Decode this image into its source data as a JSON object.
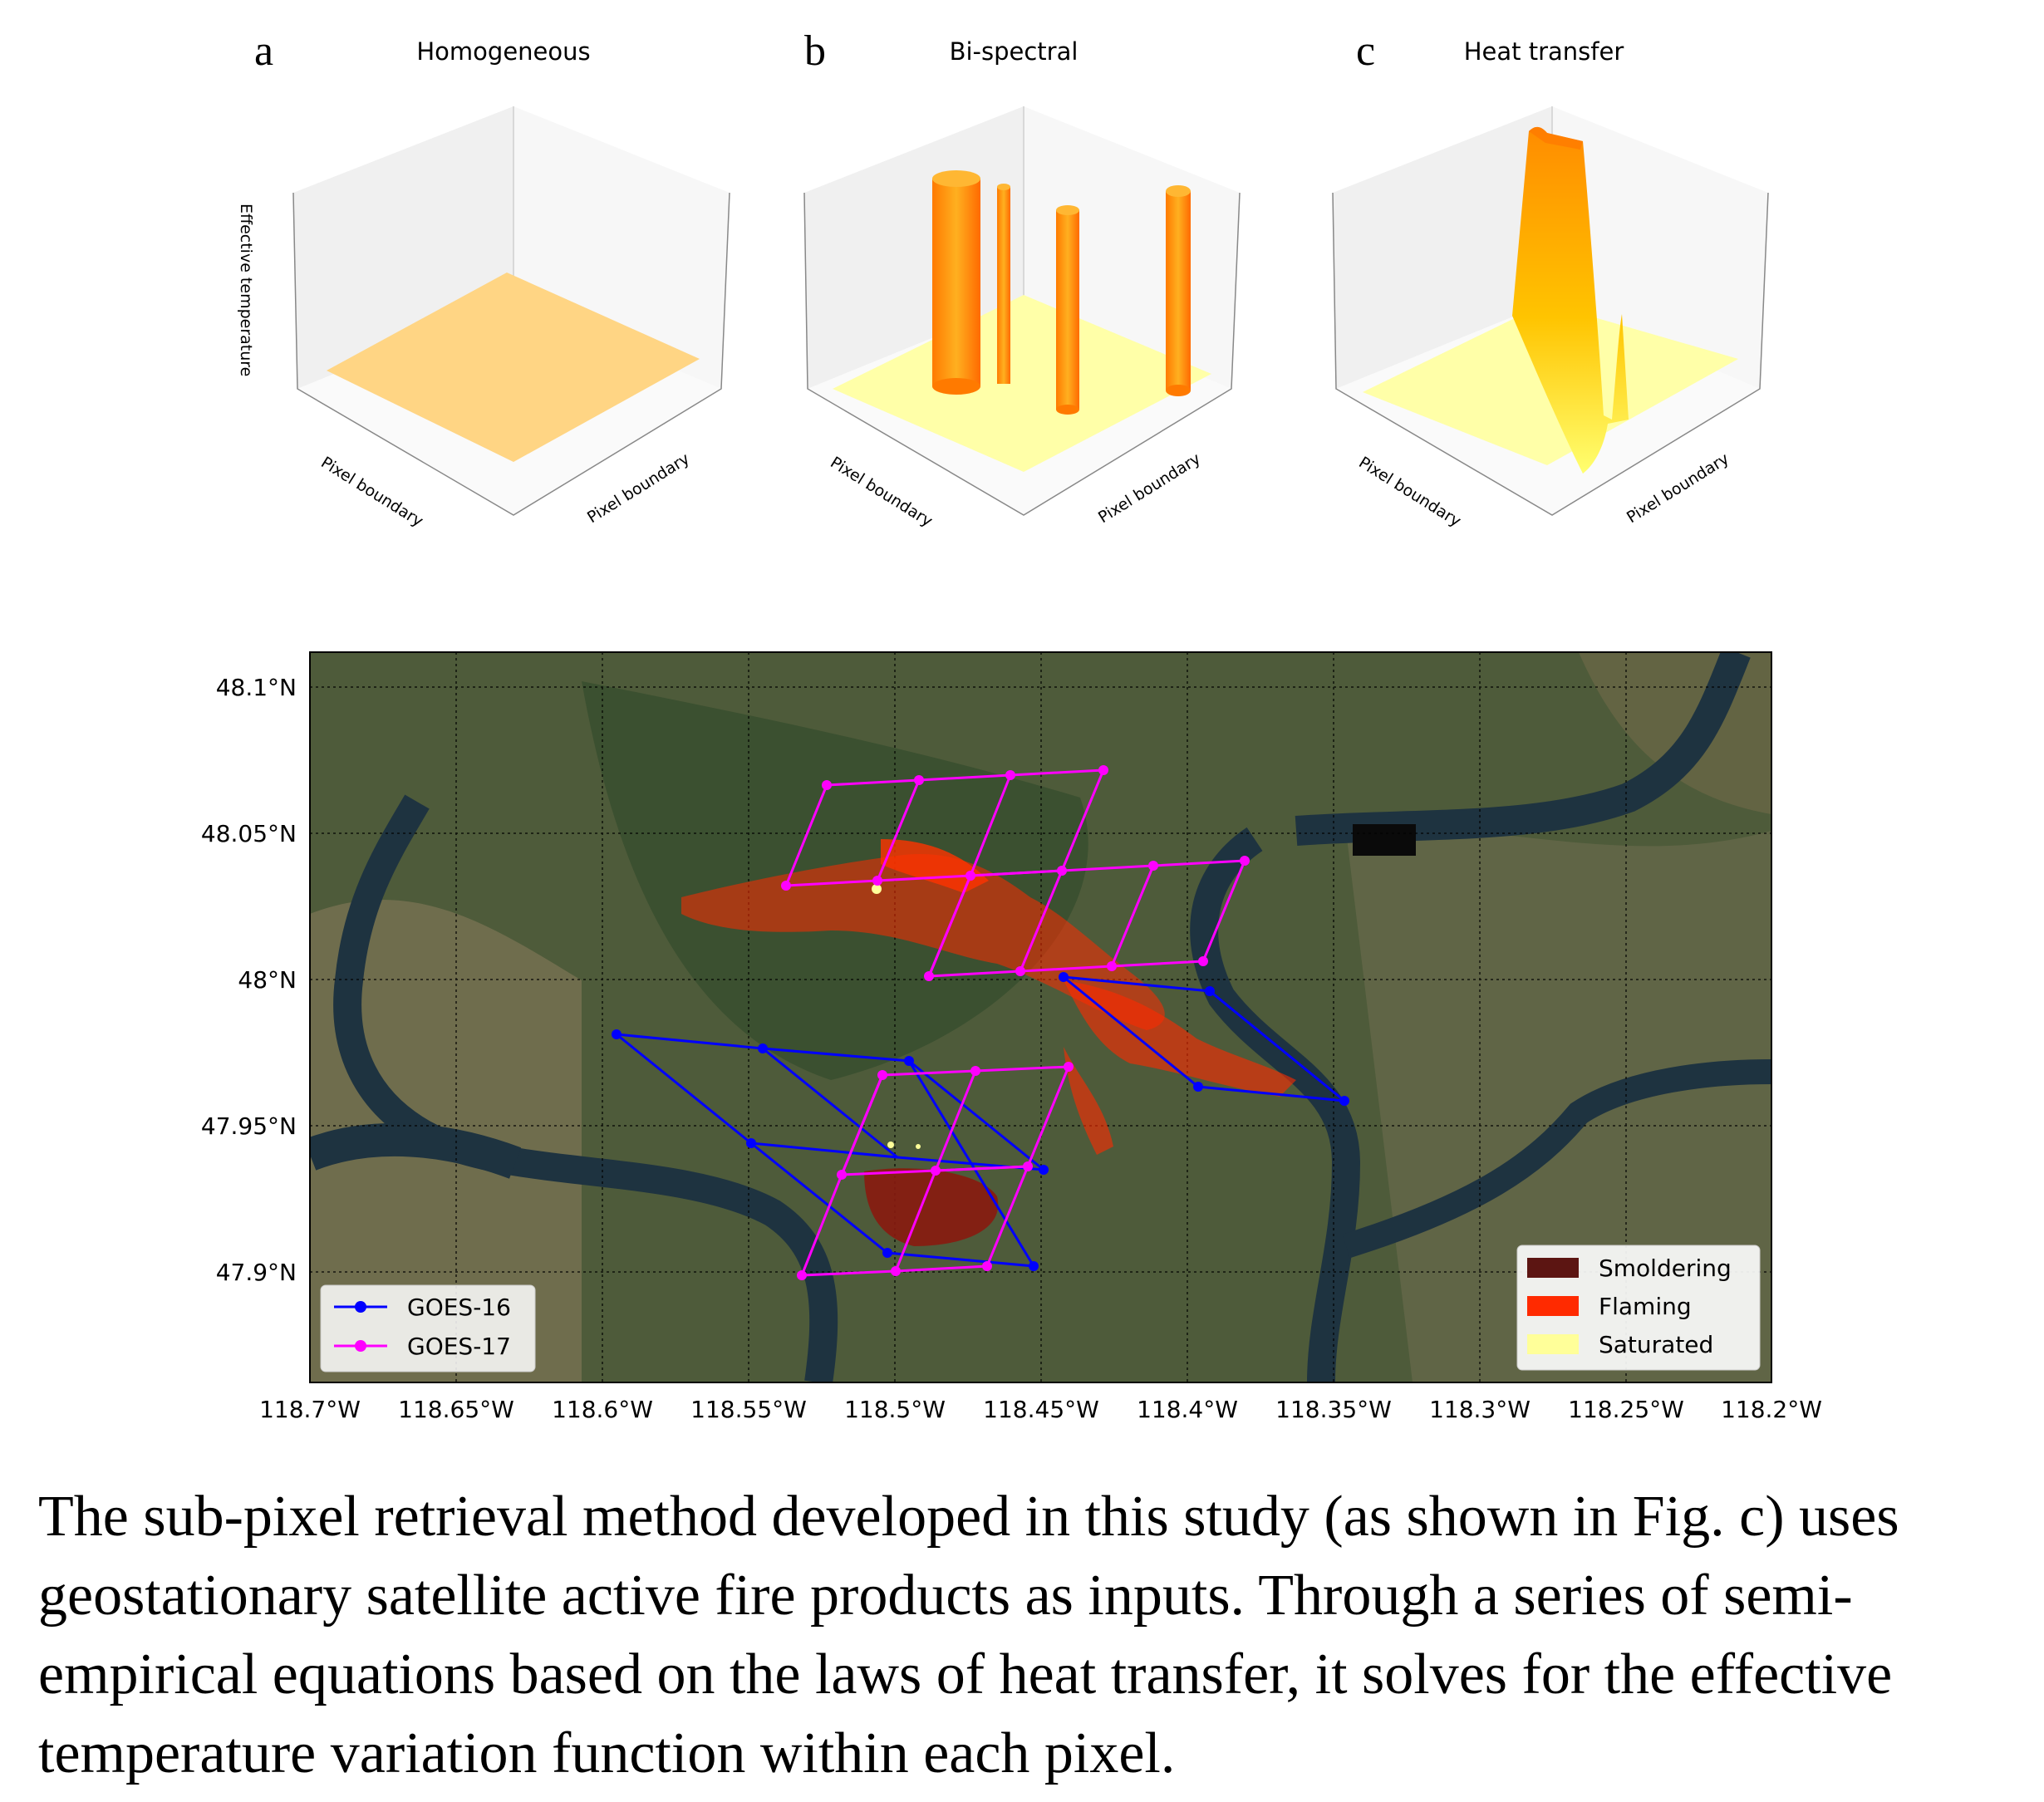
{
  "panels": [
    {
      "letter": "a",
      "title": "Homogeneous",
      "zlabel": "Effective temperature",
      "xlabel": "Pixel boundary",
      "ylabel": "Pixel boundary"
    },
    {
      "letter": "b",
      "title": "Bi-spectral",
      "xlabel": "Pixel boundary",
      "ylabel": "Pixel boundary"
    },
    {
      "letter": "c",
      "title": "Heat transfer",
      "xlabel": "Pixel boundary",
      "ylabel": "Pixel boundary"
    }
  ],
  "map": {
    "yticks": [
      "48.1°N",
      "48.05°N",
      "48°N",
      "47.95°N",
      "47.9°N"
    ],
    "xticks": [
      "118.7°W",
      "118.65°W",
      "118.6°W",
      "118.55°W",
      "118.5°W",
      "118.45°W",
      "118.4°W",
      "118.35°W",
      "118.3°W",
      "118.25°W",
      "118.2°W"
    ],
    "legend_sat": [
      {
        "label": "GOES-16",
        "color": "#0000ff"
      },
      {
        "label": "GOES-17",
        "color": "#ff00ff"
      }
    ],
    "legend_fire": [
      {
        "label": "Smoldering",
        "color": "#5c1512"
      },
      {
        "label": "Flaming",
        "color": "#ff2a00"
      },
      {
        "label": "Saturated",
        "color": "#ffff99"
      }
    ]
  },
  "caption": "The sub-pixel retrieval method developed in this study (as shown in Fig. c) uses geostationary satellite active fire products as inputs. Through a series of semi-empirical equations based on the laws of heat transfer, it solves for the effective temperature variation function within each pixel."
}
